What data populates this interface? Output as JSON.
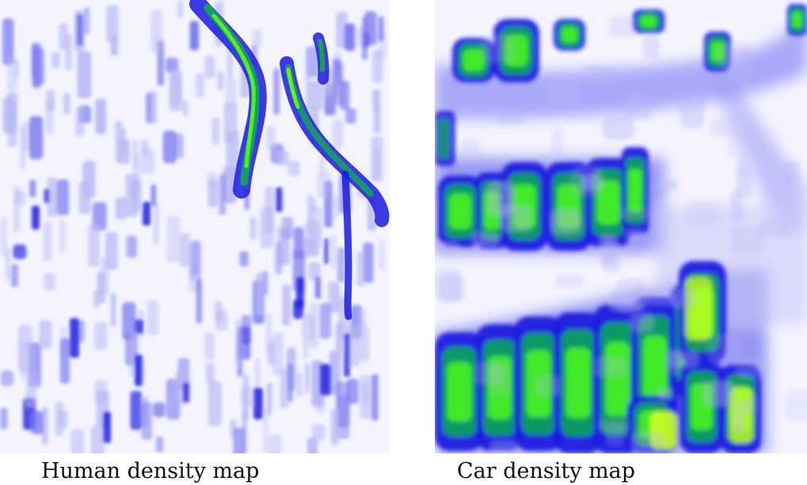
{
  "captions": {
    "human": "Human density map",
    "car": "Car density map"
  },
  "colors": {
    "background": "#f4f4ff",
    "low": "#b8b8f4",
    "mid": "#2020e0",
    "high": "#10a060",
    "peak": "#44ee22",
    "max": "#ccff22"
  }
}
